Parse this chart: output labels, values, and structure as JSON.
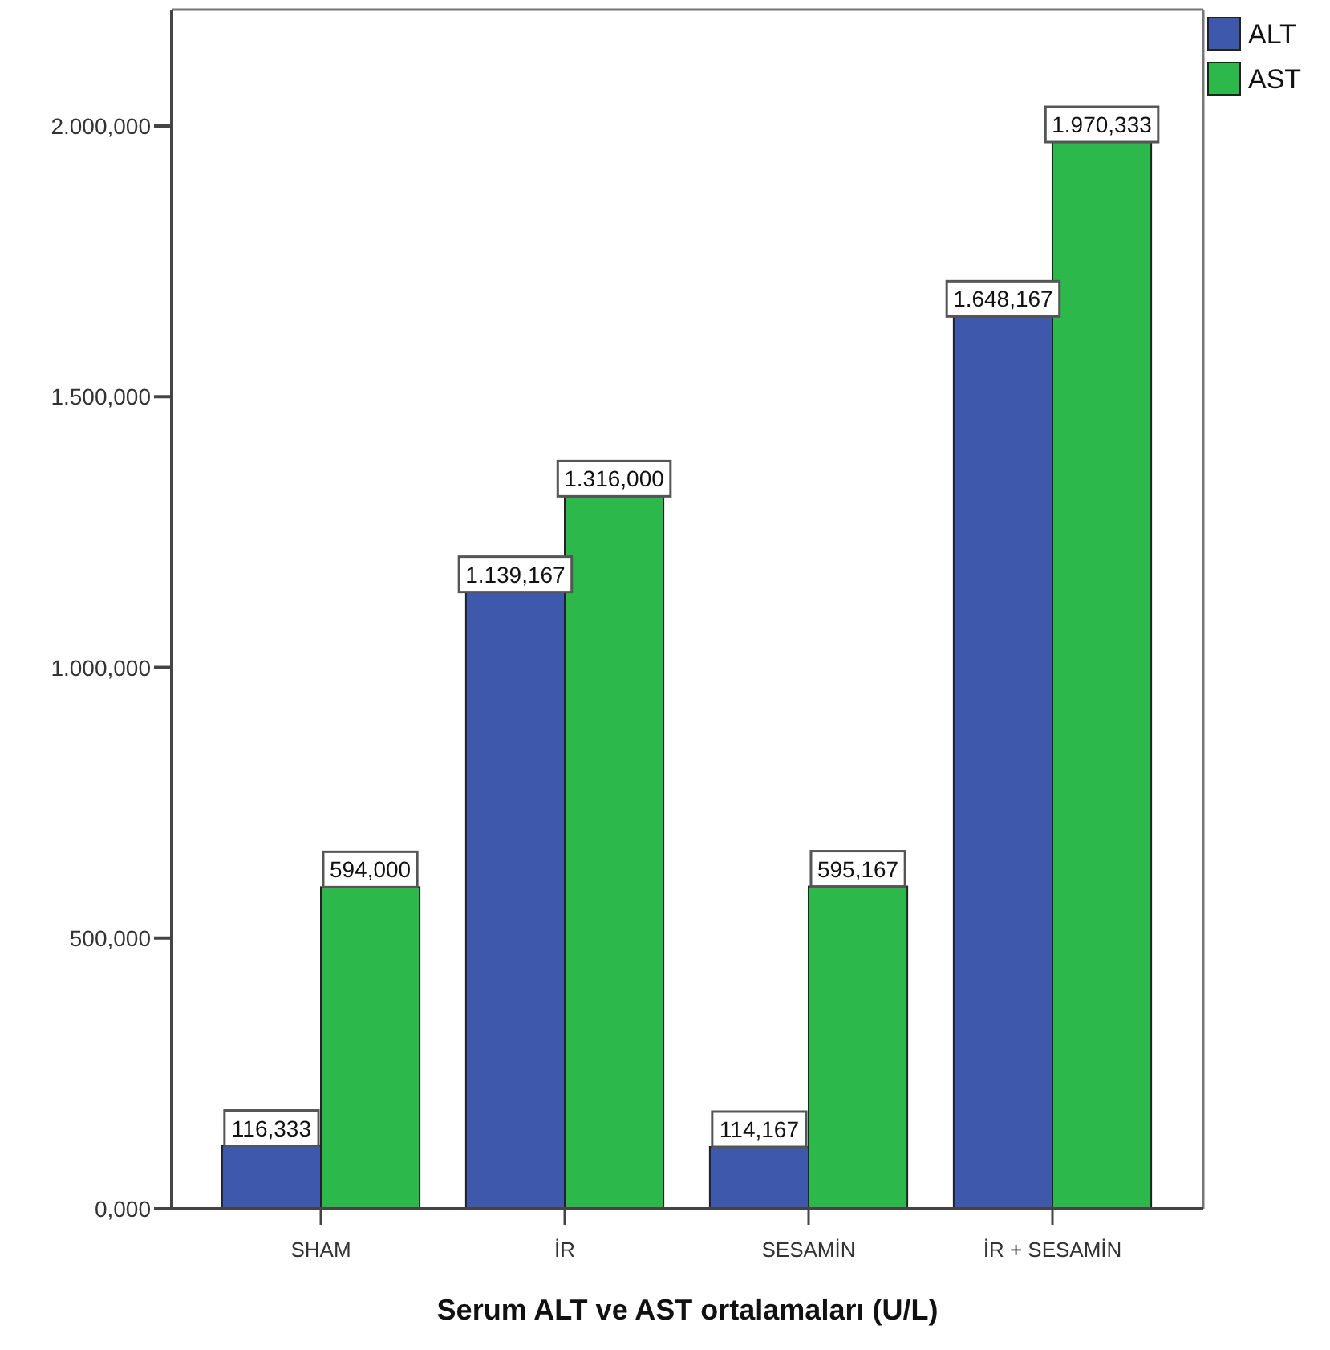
{
  "chart_data": {
    "type": "bar",
    "xlabel": "Serum ALT ve AST ortalamaları (U/L)",
    "categories": [
      "SHAM",
      "İR",
      "SESAMİN",
      "İR + SESAMİN"
    ],
    "series": [
      {
        "name": "ALT",
        "color": "#3e58ab",
        "values": [
          116.333,
          1139.167,
          114.167,
          1648.167
        ],
        "value_labels": [
          "116,333",
          "1.139,167",
          "114,167",
          "1.648,167"
        ]
      },
      {
        "name": "AST",
        "color": "#2db84b",
        "values": [
          594.0,
          1316.0,
          595.167,
          1970.333
        ],
        "value_labels": [
          "594,000",
          "1.316,000",
          "595,167",
          "1.970,333"
        ]
      }
    ],
    "ylim": [
      0,
      2215
    ],
    "yticks": [
      {
        "value": 0,
        "label": "0,000"
      },
      {
        "value": 500,
        "label": "500,000"
      },
      {
        "value": 1000,
        "label": "1.000,000"
      },
      {
        "value": 1500,
        "label": "1.500,000"
      },
      {
        "value": 2000,
        "label": "2.000,000"
      }
    ],
    "legend": "top right"
  }
}
